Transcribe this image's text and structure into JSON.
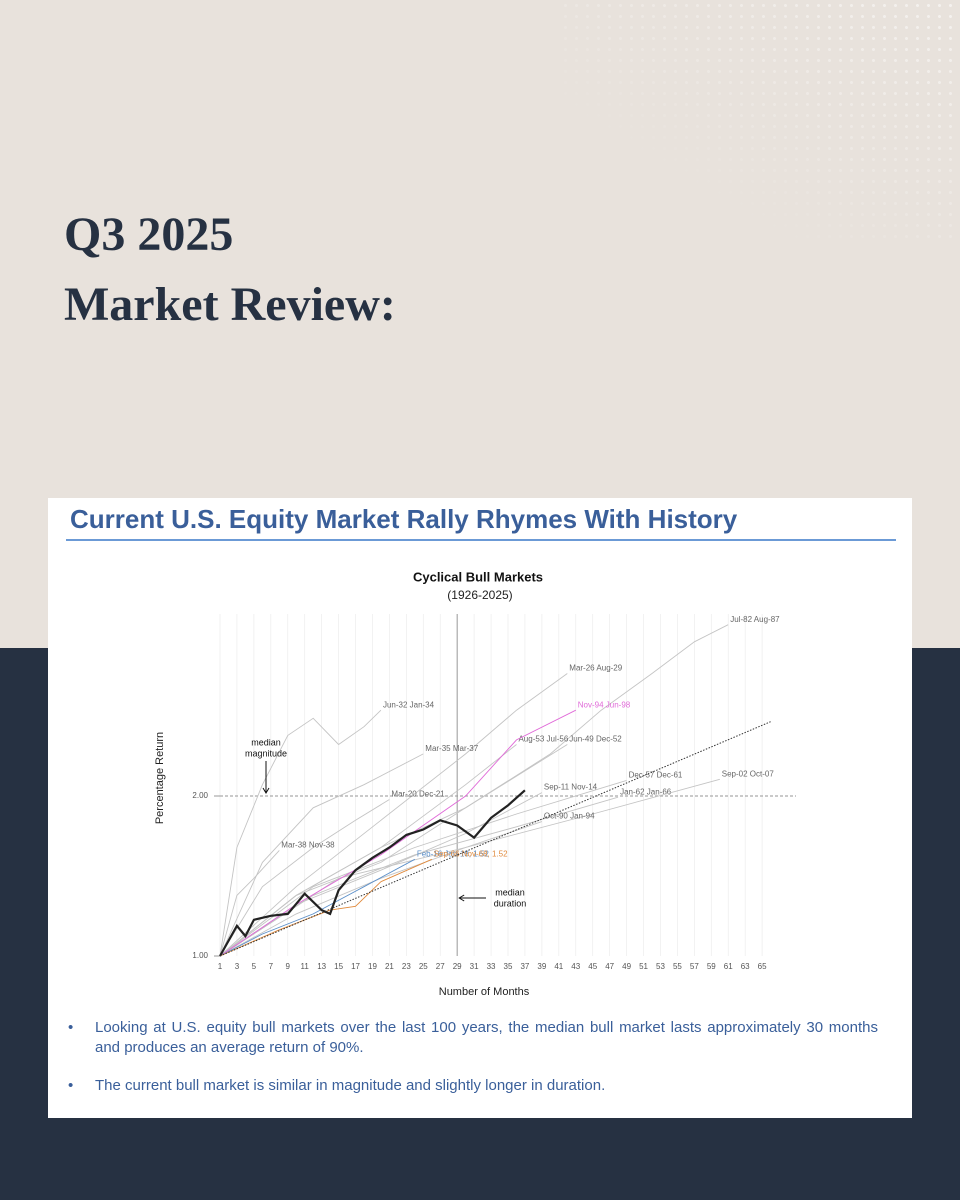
{
  "header": {
    "lines": [
      "Q3 2025",
      "Market Review:"
    ]
  },
  "card": {
    "title": "Current U.S. Equity Market Rally Rhymes With History",
    "bullets": [
      "Looking at U.S. equity bull markets over the last 100 years, the median bull market lasts approximately 30 months and produces an average return of 90%.",
      "The current bull market is similar in magnitude and slightly longer in duration."
    ]
  },
  "chart_data": {
    "type": "line",
    "title": "Cyclical Bull Markets",
    "subtitle": "(1926-2025)",
    "x_label": "Number of Months",
    "y_label": "Percentage Return",
    "log_scale": true,
    "xlim": [
      1,
      69
    ],
    "ylim": [
      1,
      4.4
    ],
    "xticks": [
      1,
      3,
      5,
      7,
      9,
      11,
      13,
      15,
      17,
      19,
      21,
      23,
      25,
      27,
      29,
      31,
      33,
      35,
      37,
      39,
      41,
      43,
      45,
      47,
      49,
      51,
      53,
      55,
      57,
      59,
      61,
      63,
      65
    ],
    "yticks": [
      {
        "value": 1,
        "label": "1.00"
      },
      {
        "value": 2,
        "label": "2.00"
      }
    ],
    "hline": 2,
    "vline": 29,
    "annotations": [
      {
        "lines": [
          "median",
          "magnitude"
        ]
      },
      {
        "lines": [
          "median",
          "duration"
        ]
      }
    ],
    "trend": {
      "x": [
        1,
        66
      ],
      "values": [
        1,
        2.76
      ]
    },
    "series": [
      {
        "name": "Jul-82 Aug-87",
        "color": "#c4c4c4",
        "x": [
          1,
          10,
          20,
          30,
          40,
          46,
          52,
          57,
          61
        ],
        "values": [
          1,
          1.3,
          1.6,
          1.9,
          2.4,
          2.9,
          3.4,
          3.9,
          4.2
        ]
      },
      {
        "name": "Mar-26 Aug-29",
        "color": "#c4c4c4",
        "x": [
          1,
          10,
          20,
          30,
          36,
          42
        ],
        "values": [
          1,
          1.35,
          1.8,
          2.4,
          2.9,
          3.4
        ]
      },
      {
        "name": "Jun-32 Jan-34",
        "color": "#c4c4c4",
        "x": [
          1,
          3,
          6,
          9,
          12,
          15,
          18,
          20
        ],
        "values": [
          1,
          1.6,
          2.1,
          2.6,
          2.8,
          2.5,
          2.7,
          2.9
        ]
      },
      {
        "name": "Mar-35 Mar-37",
        "color": "#c4c4c4",
        "x": [
          1,
          6,
          12,
          18,
          25
        ],
        "values": [
          1,
          1.5,
          1.9,
          2.1,
          2.4
        ]
      },
      {
        "name": "Aug-53 Jul-56",
        "color": "#c4c4c4",
        "x": [
          1,
          10,
          20,
          30,
          36
        ],
        "values": [
          1,
          1.3,
          1.6,
          2.1,
          2.5
        ]
      },
      {
        "name": "Jun-49 Dec-52",
        "color": "#c4c4c4",
        "x": [
          1,
          10,
          20,
          30,
          42
        ],
        "values": [
          1,
          1.3,
          1.5,
          1.9,
          2.5
        ]
      },
      {
        "name": "Mar-20 Dec-21",
        "color": "#c4c4c4",
        "x": [
          1,
          6,
          12,
          17,
          21
        ],
        "values": [
          1,
          1.35,
          1.6,
          1.8,
          1.97
        ]
      },
      {
        "name": "Sep-11 Nov-14",
        "color": "#c4c4c4",
        "x": [
          1,
          10,
          20,
          30,
          39
        ],
        "values": [
          1,
          1.25,
          1.45,
          1.7,
          2.03
        ]
      },
      {
        "name": "Jan-62 Jan-66",
        "color": "#c4c4c4",
        "x": [
          1,
          12,
          24,
          36,
          48
        ],
        "values": [
          1,
          1.3,
          1.55,
          1.75,
          1.99
        ]
      },
      {
        "name": "Dec-57 Dec-61",
        "color": "#c4c4c4",
        "x": [
          1,
          12,
          24,
          36,
          49
        ],
        "values": [
          1,
          1.35,
          1.6,
          1.85,
          2.14
        ]
      },
      {
        "name": "Sep-02 Oct-07",
        "color": "#c4c4c4",
        "x": [
          1,
          15,
          30,
          45,
          60
        ],
        "values": [
          1,
          1.4,
          1.6,
          1.85,
          2.15
        ]
      },
      {
        "name": "Oct-90 Jan-94",
        "color": "#c4c4c4",
        "x": [
          1,
          10,
          20,
          30,
          39
        ],
        "values": [
          1,
          1.2,
          1.4,
          1.6,
          1.79
        ]
      },
      {
        "name": "Mar-38 Nov-38",
        "color": "#c4c4c4",
        "x": [
          1,
          3,
          5,
          8
        ],
        "values": [
          1,
          1.3,
          1.4,
          1.58
        ]
      },
      {
        "name": "Nov-94 Jun-98",
        "color": "#e06ad8",
        "x": [
          1,
          10,
          20,
          30,
          36,
          43
        ],
        "values": [
          1,
          1.25,
          1.55,
          2.0,
          2.55,
          2.9
        ]
      },
      {
        "name": "Feb-16 Jan-18, 1.52",
        "color": "#5b8fc9",
        "x": [
          1,
          6,
          12,
          18,
          24
        ],
        "values": [
          1,
          1.1,
          1.2,
          1.35,
          1.52
        ]
      },
      {
        "name": "Sep-66 Nov-68, 1.52",
        "color": "#e08a3c",
        "x": [
          1,
          8,
          14,
          17,
          20,
          26
        ],
        "values": [
          1,
          1.12,
          1.22,
          1.24,
          1.38,
          1.52
        ]
      },
      {
        "name": null,
        "color": "#222222",
        "x": [
          1,
          3,
          4,
          5,
          7,
          9,
          11,
          13,
          14,
          15,
          17,
          19,
          21,
          23,
          25,
          27,
          29,
          31,
          33,
          35,
          37
        ],
        "values": [
          1,
          1.14,
          1.09,
          1.17,
          1.19,
          1.2,
          1.31,
          1.22,
          1.2,
          1.33,
          1.45,
          1.53,
          1.6,
          1.69,
          1.73,
          1.8,
          1.76,
          1.67,
          1.82,
          1.92,
          2.05
        ]
      }
    ]
  }
}
